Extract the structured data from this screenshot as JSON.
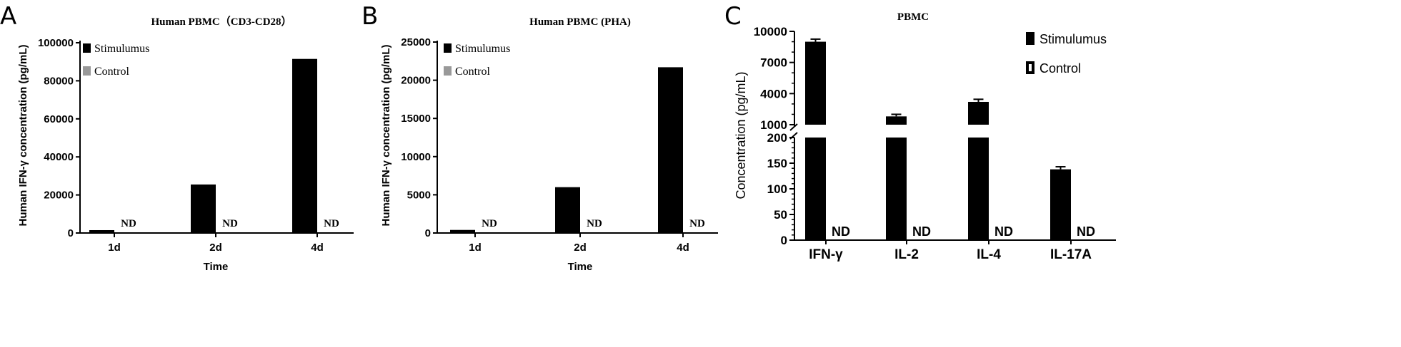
{
  "panels": {
    "A": {
      "letter": "A"
    },
    "B": {
      "letter": "B"
    },
    "C": {
      "letter": "C"
    }
  },
  "chart_data": [
    {
      "id": "A",
      "type": "bar",
      "title": "Human PBMC（CD3-CD28）",
      "xlabel": "Time",
      "ylabel": "Human IFN-γ concentration (pg/mL)",
      "categories": [
        "1d",
        "2d",
        "4d"
      ],
      "yticks": [
        0,
        20000,
        40000,
        60000,
        80000,
        100000
      ],
      "ylim": [
        0,
        100000
      ],
      "series": [
        {
          "name": "Stimulumus",
          "color": "#000000",
          "values": [
            1500,
            25500,
            91500
          ]
        },
        {
          "name": "Control",
          "color": "#999999",
          "values": [
            null,
            null,
            null
          ]
        }
      ],
      "annotations": [
        "ND",
        "ND",
        "ND"
      ],
      "legend_position": "top-left"
    },
    {
      "id": "B",
      "type": "bar",
      "title": "Human PBMC (PHA)",
      "xlabel": "Time",
      "ylabel": "Human IFN-γ concentration (pg/mL)",
      "categories": [
        "1d",
        "2d",
        "4d"
      ],
      "yticks": [
        0,
        5000,
        10000,
        15000,
        20000,
        25000
      ],
      "ylim": [
        0,
        25000
      ],
      "series": [
        {
          "name": "Stimulumus",
          "color": "#000000",
          "values": [
            400,
            6000,
            21700
          ]
        },
        {
          "name": "Control",
          "color": "#999999",
          "values": [
            null,
            null,
            null
          ]
        }
      ],
      "annotations": [
        "ND",
        "ND",
        "ND"
      ],
      "legend_position": "top-left"
    },
    {
      "id": "C",
      "type": "bar",
      "title": "PBMC",
      "xlabel": "",
      "ylabel": "Concentration (pg/mL)",
      "categories": [
        "IFN-γ",
        "IL-2",
        "IL-4",
        "IL-17A"
      ],
      "axis_break": true,
      "lower_yticks": [
        0,
        50,
        100,
        150,
        200
      ],
      "lower_ylim": [
        0,
        200
      ],
      "upper_yticks": [
        1000,
        4000,
        7000,
        10000
      ],
      "upper_ylim": [
        1000,
        10000
      ],
      "series": [
        {
          "name": "Stimulumus",
          "color": "#000000",
          "values": [
            9000,
            1800,
            3200,
            138
          ],
          "errors": [
            250,
            200,
            250,
            5
          ]
        },
        {
          "name": "Control",
          "color": "#ffffff",
          "values": [
            null,
            null,
            null,
            null
          ]
        }
      ],
      "annotations": [
        "ND",
        "ND",
        "ND",
        "ND"
      ],
      "legend_position": "top-right"
    }
  ]
}
